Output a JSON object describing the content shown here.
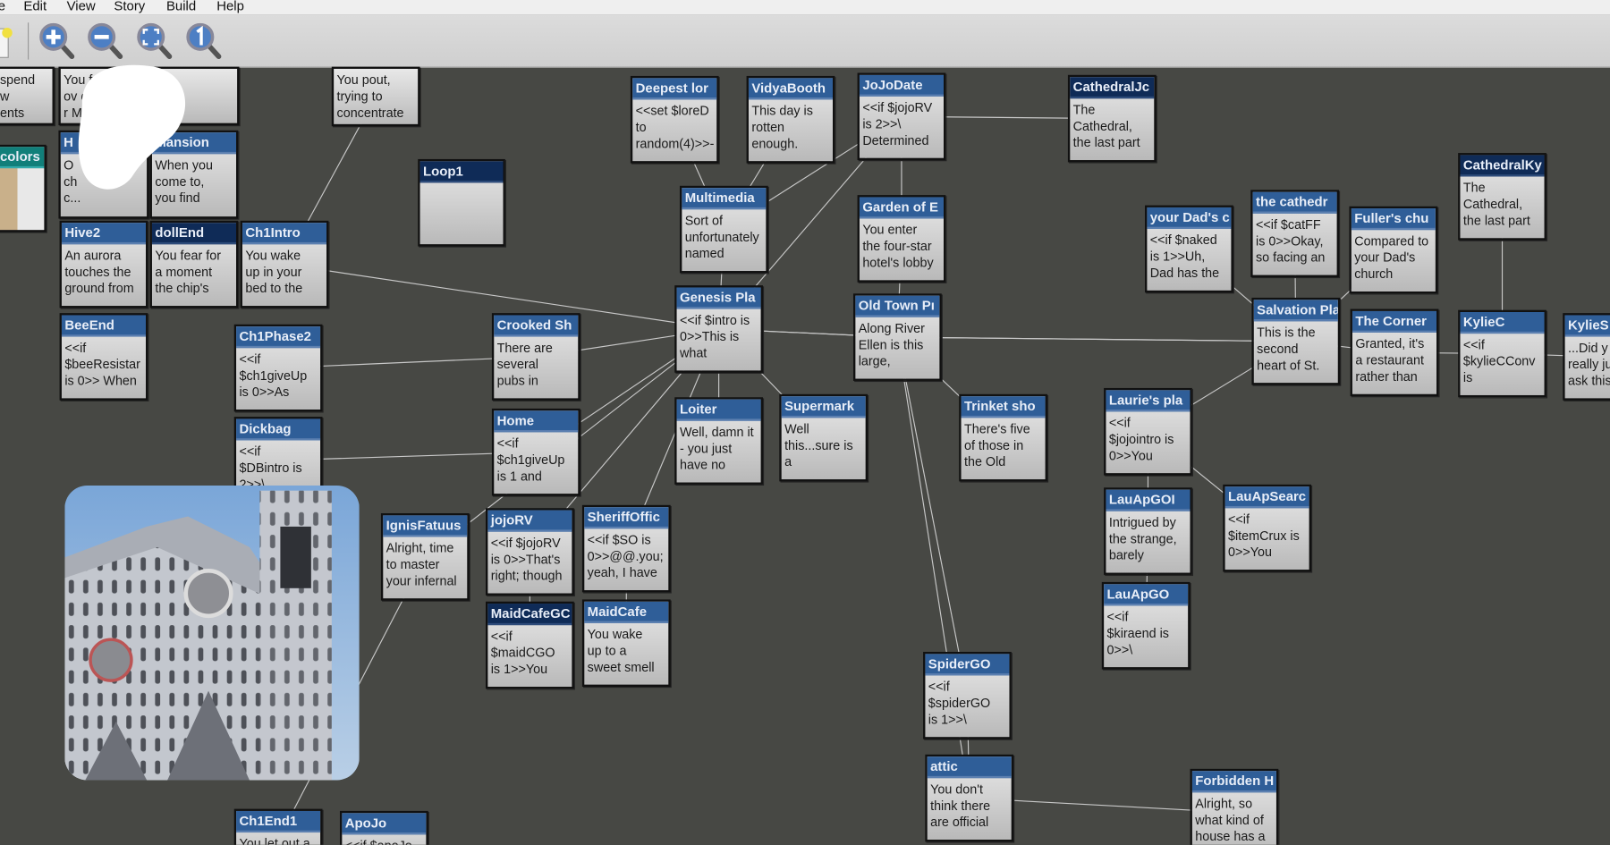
{
  "menu": {
    "items": [
      "e",
      "Edit",
      "View",
      "Story",
      "Build",
      "Help"
    ]
  },
  "toolbar": {
    "buttons": [
      {
        "icon": "new-story-icon"
      },
      {
        "icon": "zoom-in-icon"
      },
      {
        "icon": "zoom-out-icon"
      },
      {
        "icon": "zoom-fit-icon"
      },
      {
        "icon": "zoom-actual-size-icon"
      }
    ]
  },
  "colors": {
    "canvas": "#474844",
    "passage_header": "#2f5e98",
    "selected_header": "#0f2b57",
    "image_header": "#117f7a"
  },
  "passages": [
    {
      "title": "",
      "text": "spend\nw\nents"
    },
    {
      "title": "",
      "text": "You         fact,\nov          e pretty\nr            Mom"
    },
    {
      "title": "",
      "text": "You pout,\ntrying to\nconcentrate"
    },
    {
      "title": "colors",
      "text": ""
    },
    {
      "title": "H",
      "text": "O\nch\nc..."
    },
    {
      "title": "Mansion",
      "text": "When you\ncome to,\nyou find"
    },
    {
      "title": "Loop1",
      "text": ""
    },
    {
      "title": "Hive2",
      "text": "An aurora\ntouches the\nground from"
    },
    {
      "title": "dollEnd",
      "text": "You fear for\na moment\nthe chip's"
    },
    {
      "title": "Ch1Intro",
      "text": "You wake\nup in your\nbed to the"
    },
    {
      "title": "BeeEnd",
      "text": "<<if\n$beeResistar\nis 0>> When"
    },
    {
      "title": "Ch1Phase2",
      "text": "<<if\n$ch1giveUp\nis 0>>As"
    },
    {
      "title": "Dickbag",
      "text": "<<if\n$DBintro is\n2>>\\"
    },
    {
      "title": "Crooked Sh",
      "text": "There are\nseveral\npubs in"
    },
    {
      "title": "Home",
      "text": "<<if\n$ch1giveUp\nis 1 and"
    },
    {
      "title": "IgnisFatuus",
      "text": "Alright, time\nto master\nyour infernal"
    },
    {
      "title": "jojoRV",
      "text": "<<if $jojoRV\nis 0>>That's\nright; though"
    },
    {
      "title": "SheriffOffic",
      "text": "<<if $SO is\n0>>@@.you;\nyeah, I have"
    },
    {
      "title": "MaidCafeGC",
      "text": "<<if\n$maidCGO\nis 1>>You"
    },
    {
      "title": "MaidCafe",
      "text": "You wake\nup to a\nsweet smell"
    },
    {
      "title": "Ch1End1",
      "text": "You let out a"
    },
    {
      "title": "ApoJo",
      "text": "<<if $apoJo is"
    },
    {
      "title": "Deepest lor",
      "text": "<<set $loreD\nto\nrandom(4)>>-"
    },
    {
      "title": "VidyaBooth",
      "text": "This day is\nrotten\nenough."
    },
    {
      "title": "JoJoDate",
      "text": "<<if $jojoRV\nis 2>>\\\nDetermined"
    },
    {
      "title": "CathedralJc",
      "text": "The\nCathedral,\nthe last part"
    },
    {
      "title": "Multimedia",
      "text": "Sort of\nunfortunately\nnamed"
    },
    {
      "title": "Garden of E",
      "text": "You enter\nthe four-star\nhotel's lobby"
    },
    {
      "title": "Genesis Pla",
      "text": "<<if $intro is\n0>>This is\nwhat"
    },
    {
      "title": "Old Town Pı",
      "text": "Along River\nEllen is this\nlarge,"
    },
    {
      "title": "Loiter",
      "text": "Well, damn it\n- you just\nhave no"
    },
    {
      "title": "Supermark",
      "text": "Well\nthis...sure is\na"
    },
    {
      "title": "Trinket sho",
      "text": "There's five\nof those in\nthe Old"
    },
    {
      "title": "your Dad's c",
      "text": "<<if $naked\nis 1>>Uh,\nDad has the"
    },
    {
      "title": "the cathedr",
      "text": "<<if $catFF\nis 0>>Okay,\nso facing an"
    },
    {
      "title": "Fuller's chu",
      "text": "Compared to\nyour Dad's\nchurch"
    },
    {
      "title": "CathedralKy",
      "text": "The\nCathedral,\nthe last part"
    },
    {
      "title": "Salvation Pla",
      "text": "This is the\nsecond\nheart of St."
    },
    {
      "title": "The Corner",
      "text": "Granted, it's\na restaurant\nrather than"
    },
    {
      "title": "KylieC",
      "text": "<<if\n$kylieCConv\nis"
    },
    {
      "title": "KylieS",
      "text": "...Did y\nreally ju\nask this"
    },
    {
      "title": "Laurie's pla",
      "text": "<<if\n$jojointro is\n0>>You"
    },
    {
      "title": "LauApGOI",
      "text": "Intrigued by\nthe strange,\nbarely"
    },
    {
      "title": "LauApSearc",
      "text": "<<if\n$itemCrux is\n0>>You"
    },
    {
      "title": "LauApGO",
      "text": "<<if\n$kiraend is\n0>>\\"
    },
    {
      "title": "SpiderGO",
      "text": "<<if\n$spiderGO\nis 1>>\\"
    },
    {
      "title": "attic",
      "text": "You don't\nthink there\nare official"
    },
    {
      "title": "Forbidden H",
      "text": "Alright, so\nwhat kind of\nhouse has a"
    }
  ]
}
